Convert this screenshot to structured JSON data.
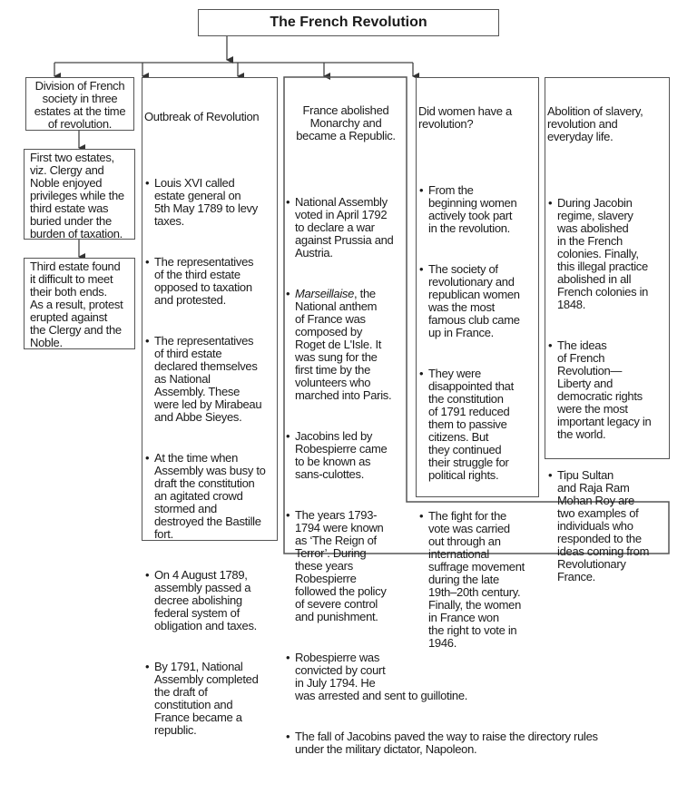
{
  "title": "The French Revolution",
  "bullet": "•",
  "col1": {
    "boxes": [
      "Division of French\nsociety in three\nestates at the time\nof revolution.",
      "First two estates,\nviz. Clergy and\nNoble enjoyed\nprivileges while the\nthird estate was\nburied under the\nburden of taxation.",
      "Third estate found\nit difficult to meet\ntheir both ends.\nAs a result, protest\nerupted against\nthe Clergy and the\nNoble."
    ]
  },
  "col2": {
    "heading": "Outbreak of Revolution",
    "items": [
      "Louis XVI called\nestate general on\n5th May 1789 to levy\ntaxes.",
      "The representatives\nof the third estate\nopposed to taxation\nand protested.",
      "The representatives\nof third estate\ndeclared themselves\nas National\nAssembly. These\nwere led by Mirabeau\nand Abbe Sieyes.",
      "At the time when\nAssembly was busy to\ndraft the constitution\nan agitated crowd\nstormed and\ndestroyed the Bastille\nfort.",
      "On 4 August 1789,\nassembly passed a\ndecree abolishing\nfederal system of\nobligation and taxes.",
      "By 1791, National\nAssembly completed\nthe draft of\nconstitution and\nFrance became a\nrepublic."
    ]
  },
  "col3": {
    "heading": "France abolished\nMonarchy and\nbecame a Republic.",
    "items": [
      {
        "text": "National Assembly\nvoted in April 1792\nto declare a war\nagainst Prussia and\nAustria."
      },
      {
        "em": "Marseillaise",
        "text": ", the\nNational anthem\nof France was\ncomposed by\nRoget de L'Isle. It\nwas sung for the\nfirst time by the\nvolunteers who\nmarched into Paris."
      },
      {
        "text": "Jacobins led by\nRobespierre came\nto be known as\nsans-culottes."
      },
      {
        "text": "The years 1793-\n1794 were known\nas ‘The Reign of\nTerror’. During\nthese years\nRobespierre\nfollowed the policy\nof severe control\nand punishment."
      },
      {
        "text": "Robespierre was\nconvicted by court\nin July 1794. He\nwas arrested and sent to guillotine."
      },
      {
        "text": "The fall of Jacobins paved the way to raise the directory rules\nunder the military dictator, Napoleon."
      }
    ]
  },
  "col4": {
    "heading": "Did women have a\nrevolution?",
    "items": [
      "From the\nbeginning women\nactively took part\nin the revolution.",
      "The society of\nrevolutionary and\nrepublican women\nwas the most\nfamous club came\nup in France.",
      "They were\ndisappointed that\nthe constitution\nof 1791 reduced\nthem to passive\ncitizens. But\nthey continued\ntheir struggle for\npolitical rights.",
      "The fight for the\nvote was carried\nout through an\ninternational\nsuffrage movement\nduring the late\n19th–20th century.\nFinally, the women\nin France won\nthe right to vote in\n1946."
    ]
  },
  "col5": {
    "heading": "Abolition of slavery,\nrevolution and\neveryday life.",
    "items": [
      "During Jacobin\nregime, slavery\nwas abolished\nin the French\ncolonies. Finally,\nthis illegal practice\nabolished in all\nFrench colonies in\n1848.",
      "The ideas\nof French\nRevolution—\nLiberty and\ndemocratic rights\nwere the most\nimportant legacy in\nthe world.",
      "Tipu Sultan\nand Raja Ram\nMohan Roy are\ntwo examples of\nindividuals who\nresponded to the\nideas coming from\nRevolutionary\nFrance."
    ]
  },
  "colors": {
    "line": "#555555",
    "text": "#1a1a1a"
  }
}
